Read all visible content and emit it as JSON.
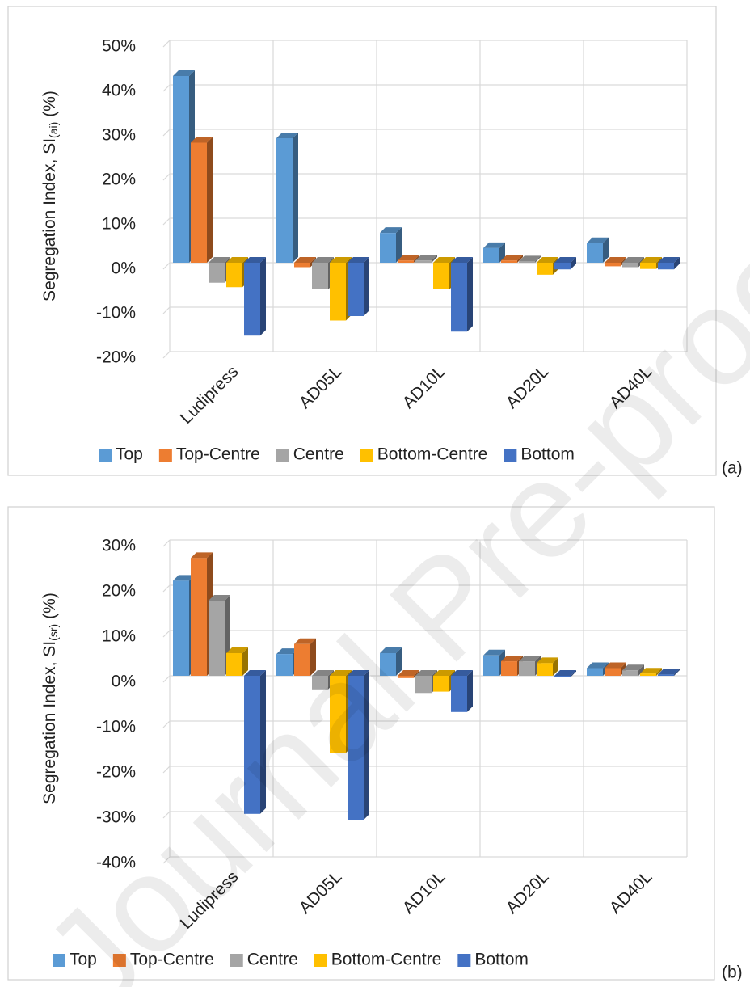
{
  "chart_data": [
    {
      "type": "bar3d",
      "panel_label": "(a)",
      "y_label": "Segregation Index, SI",
      "y_label_subscript": "(ai)",
      "y_label_suffix": "(%)",
      "categories": [
        "Ludipress",
        "AD05L",
        "AD10L",
        "AD20L",
        "AD40L"
      ],
      "series": [
        {
          "name": "Top",
          "color": "#5b9bd5",
          "values": [
            42,
            28,
            6.7,
            3.3,
            4.4
          ]
        },
        {
          "name": "Top-Centre",
          "color": "#ed7d31",
          "values": [
            27,
            -1,
            0.5,
            0.5,
            -0.8
          ]
        },
        {
          "name": "Centre",
          "color": "#a5a5a5",
          "values": [
            -4.5,
            -6,
            0.5,
            0.3,
            -1
          ]
        },
        {
          "name": "Bottom-Centre",
          "color": "#ffc000",
          "values": [
            -5.5,
            -13,
            -6,
            -2.7,
            -1.4
          ]
        },
        {
          "name": "Bottom",
          "color": "#4472c4",
          "values": [
            -16.4,
            -12,
            -15.5,
            -1.5,
            -1.5
          ]
        }
      ],
      "ylim": [
        -20,
        50
      ],
      "yticks": [
        {
          "value": -20,
          "label": "-20%"
        },
        {
          "value": -10,
          "label": "-10%"
        },
        {
          "value": 0,
          "label": "0%"
        },
        {
          "value": 10,
          "label": "10%"
        },
        {
          "value": 20,
          "label": "20%"
        },
        {
          "value": 30,
          "label": "30%"
        },
        {
          "value": 40,
          "label": "40%"
        },
        {
          "value": 50,
          "label": "50%"
        }
      ],
      "grid": true
    },
    {
      "type": "bar3d",
      "panel_label": "(b)",
      "y_label": "Segregation Index, SI",
      "y_label_subscript": "(sr)",
      "y_label_suffix": "(%)",
      "categories": [
        "Ludipress",
        "AD05L",
        "AD10L",
        "AD20L",
        "AD40L"
      ],
      "series": [
        {
          "name": "Top",
          "color": "#5b9bd5",
          "values": [
            21,
            4.8,
            5,
            4.5,
            1.7
          ]
        },
        {
          "name": "Top-Centre",
          "color": "#ed7d31",
          "values": [
            26,
            7,
            -0.5,
            3.2,
            1.7
          ]
        },
        {
          "name": "Centre",
          "color": "#a5a5a5",
          "values": [
            16.6,
            -3,
            -3.8,
            3.2,
            1.2
          ]
        },
        {
          "name": "Bottom-Centre",
          "color": "#ffc000",
          "values": [
            5,
            -17,
            -3.5,
            2.8,
            0.5
          ]
        },
        {
          "name": "Bottom",
          "color": "#4472c4",
          "values": [
            -30.5,
            -31.8,
            -8,
            -0.3,
            0.3
          ]
        }
      ],
      "ylim": [
        -40,
        30
      ],
      "yticks": [
        {
          "value": -40,
          "label": "-40%"
        },
        {
          "value": -30,
          "label": "-30%"
        },
        {
          "value": -20,
          "label": "-20%"
        },
        {
          "value": -10,
          "label": "-10%"
        },
        {
          "value": 0,
          "label": "0%"
        },
        {
          "value": 10,
          "label": "10%"
        },
        {
          "value": 20,
          "label": "20%"
        },
        {
          "value": 30,
          "label": "30%"
        }
      ],
      "grid": true
    }
  ],
  "watermark": "Journal Pre-proof"
}
